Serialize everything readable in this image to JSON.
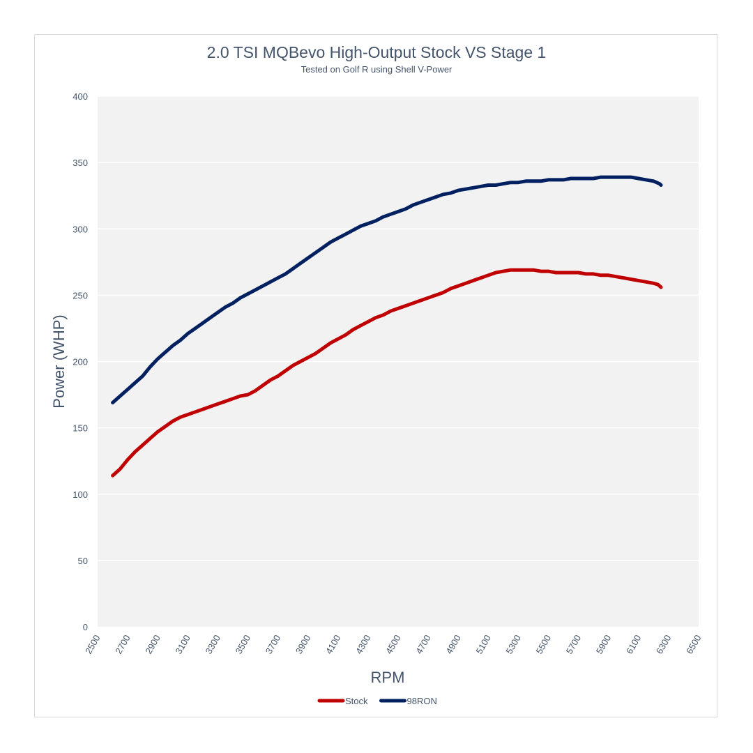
{
  "chart_data": {
    "type": "line",
    "title": "2.0 TSI MQBevo High-Output Stock VS Stage 1",
    "subtitle": "Tested on Golf R using Shell V-Power",
    "xlabel": "RPM",
    "ylabel": "Power (WHP)",
    "xlim": [
      2500,
      6500
    ],
    "ylim": [
      0,
      400
    ],
    "x_ticks": [
      "2500",
      "2700",
      "2900",
      "3100",
      "3300",
      "3500",
      "3700",
      "3900",
      "4100",
      "4300",
      "4500",
      "4700",
      "4900",
      "5100",
      "5300",
      "5500",
      "5700",
      "5900",
      "6100",
      "6300",
      "6500"
    ],
    "y_ticks": [
      "0",
      "50",
      "100",
      "150",
      "200",
      "250",
      "300",
      "350",
      "400"
    ],
    "grid": "horizontal",
    "plot_background": "#f2f2f2",
    "legend_position": "bottom",
    "series": [
      {
        "name": "Stock",
        "color": "#c00000",
        "x": [
          2600,
          2650,
          2700,
          2750,
          2800,
          2850,
          2900,
          2950,
          3000,
          3050,
          3100,
          3150,
          3200,
          3250,
          3300,
          3350,
          3400,
          3450,
          3500,
          3550,
          3600,
          3650,
          3700,
          3750,
          3800,
          3850,
          3900,
          3950,
          4000,
          4050,
          4100,
          4150,
          4200,
          4250,
          4300,
          4350,
          4400,
          4450,
          4500,
          4550,
          4600,
          4650,
          4700,
          4750,
          4800,
          4850,
          4900,
          4950,
          5000,
          5050,
          5100,
          5150,
          5200,
          5250,
          5300,
          5350,
          5400,
          5450,
          5500,
          5550,
          5600,
          5650,
          5700,
          5750,
          5800,
          5850,
          5900,
          5950,
          6000,
          6050,
          6100,
          6150,
          6200,
          6230,
          6250
        ],
        "y": [
          114,
          119,
          126,
          132,
          137,
          142,
          147,
          151,
          155,
          158,
          160,
          162,
          164,
          166,
          168,
          170,
          172,
          174,
          175,
          178,
          182,
          186,
          189,
          193,
          197,
          200,
          203,
          206,
          210,
          214,
          217,
          220,
          224,
          227,
          230,
          233,
          235,
          238,
          240,
          242,
          244,
          246,
          248,
          250,
          252,
          255,
          257,
          259,
          261,
          263,
          265,
          267,
          268,
          269,
          269,
          269,
          269,
          268,
          268,
          267,
          267,
          267,
          267,
          266,
          266,
          265,
          265,
          264,
          263,
          262,
          261,
          260,
          259,
          258,
          256
        ]
      },
      {
        "name": "98RON",
        "color": "#002060",
        "x": [
          2600,
          2650,
          2700,
          2750,
          2800,
          2850,
          2900,
          2950,
          3000,
          3050,
          3100,
          3150,
          3200,
          3250,
          3300,
          3350,
          3400,
          3450,
          3500,
          3550,
          3600,
          3650,
          3700,
          3750,
          3800,
          3850,
          3900,
          3950,
          4000,
          4050,
          4100,
          4150,
          4200,
          4250,
          4300,
          4350,
          4400,
          4450,
          4500,
          4550,
          4600,
          4650,
          4700,
          4750,
          4800,
          4850,
          4900,
          4950,
          5000,
          5050,
          5100,
          5150,
          5200,
          5250,
          5300,
          5350,
          5400,
          5450,
          5500,
          5550,
          5600,
          5650,
          5700,
          5750,
          5800,
          5850,
          5900,
          5950,
          6000,
          6050,
          6100,
          6150,
          6200,
          6220,
          6240,
          6250
        ],
        "y": [
          169,
          174,
          179,
          184,
          189,
          196,
          202,
          207,
          212,
          216,
          221,
          225,
          229,
          233,
          237,
          241,
          244,
          248,
          251,
          254,
          257,
          260,
          263,
          266,
          270,
          274,
          278,
          282,
          286,
          290,
          293,
          296,
          299,
          302,
          304,
          306,
          309,
          311,
          313,
          315,
          318,
          320,
          322,
          324,
          326,
          327,
          329,
          330,
          331,
          332,
          333,
          333,
          334,
          335,
          335,
          336,
          336,
          336,
          337,
          337,
          337,
          338,
          338,
          338,
          338,
          339,
          339,
          339,
          339,
          339,
          338,
          337,
          336,
          335,
          334,
          333
        ]
      }
    ]
  }
}
